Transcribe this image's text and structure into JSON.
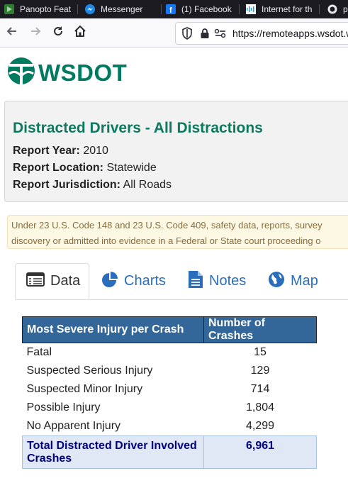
{
  "browser": {
    "tabs": [
      {
        "label": "Panopto Feat",
        "icon": "panopto-icon"
      },
      {
        "label": "Messenger",
        "icon": "messenger-icon"
      },
      {
        "label": "(1) Facebook",
        "icon": "facebook-icon"
      },
      {
        "label": "Internet for th",
        "icon": "cisco-icon"
      },
      {
        "label": "p",
        "icon": "github-icon"
      }
    ],
    "url": "https://remoteapps.wsdot.w"
  },
  "logo": {
    "text": "WSDOT"
  },
  "report": {
    "title": "Distracted Drivers - All Distractions",
    "year_label": "Report Year:",
    "year_value": "2010",
    "location_label": "Report Location:",
    "location_value": "Statewide",
    "jurisdiction_label": "Report Jurisdiction:",
    "jurisdiction_value": "All Roads"
  },
  "notice": {
    "line1": "Under 23 U.S. Code 148 and 23 U.S. Code 409, safety data, reports, survey",
    "line2": "discovery or admitted into evidence in a Federal or State court proceeding o"
  },
  "page_tabs": [
    {
      "label": "Data",
      "icon": "table-icon",
      "active": true
    },
    {
      "label": "Charts",
      "icon": "pie-chart-icon",
      "active": false
    },
    {
      "label": "Notes",
      "icon": "document-icon",
      "active": false
    },
    {
      "label": "Map",
      "icon": "globe-icon",
      "active": false
    }
  ],
  "table": {
    "headers": [
      "Most Severe Injury per Crash",
      "Number of Crashes"
    ],
    "rows": [
      {
        "label": "Fatal",
        "value": "15"
      },
      {
        "label": "Suspected Serious Injury",
        "value": "129"
      },
      {
        "label": "Suspected Minor Injury",
        "value": "714"
      },
      {
        "label": "Possible Injury",
        "value": "1,804"
      },
      {
        "label": "No Apparent Injury",
        "value": "4,299"
      }
    ],
    "total": {
      "label_line1": "Total Distracted Driver Involved",
      "label_line2": "Crashes",
      "value": "6,961"
    }
  },
  "colors": {
    "brand_green": "#007b5f",
    "header_blue": "#336699",
    "link_blue": "#2a6ebb",
    "total_text": "#000080"
  }
}
